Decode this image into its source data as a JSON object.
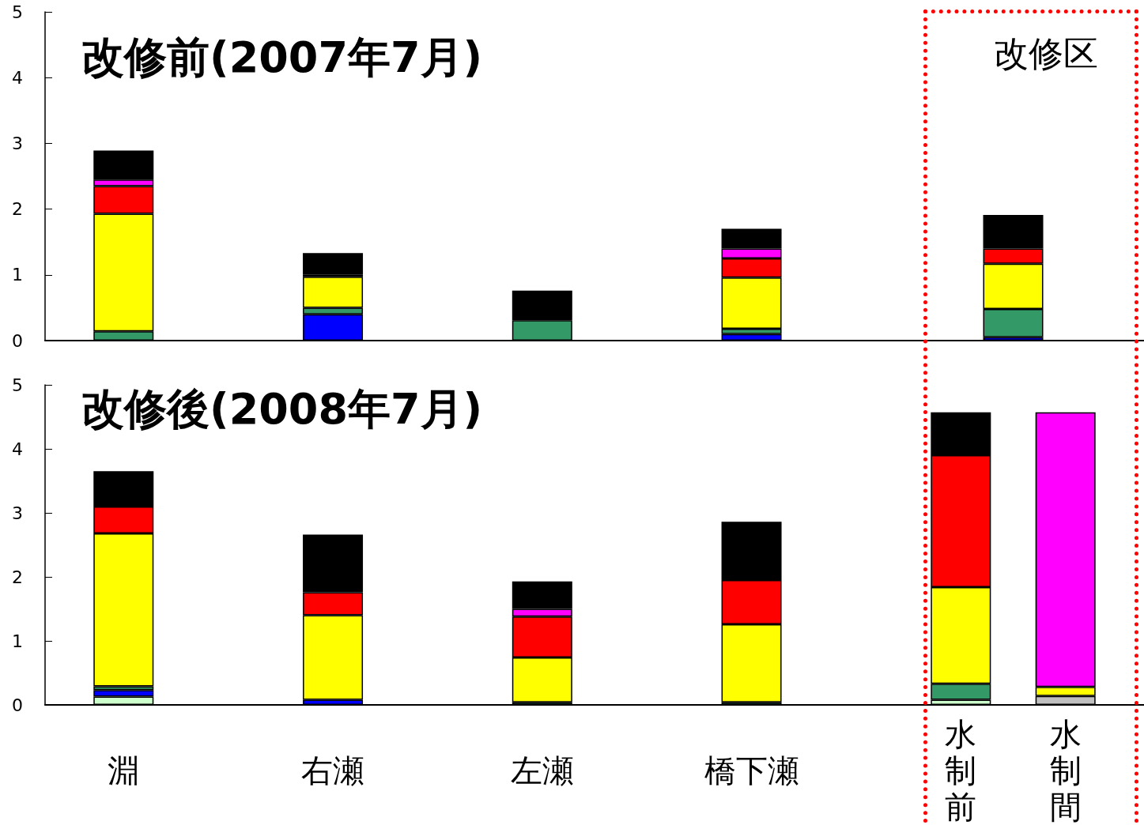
{
  "chart_data": [
    {
      "type": "bar",
      "title": "改修前(2007年7月)",
      "stacked": true,
      "tick_labels": "y",
      "ylim": [
        0,
        5
      ],
      "yticks": [
        0,
        1,
        2,
        3,
        4,
        5
      ],
      "grid": false,
      "annotations": [
        "改修区"
      ],
      "categories": [
        null,
        null,
        null,
        null,
        null,
        null,
        null,
        null,
        null,
        null,
        null,
        null,
        null,
        null,
        null,
        null,
        null,
        null,
        null,
        null,
        null
      ],
      "series": [
        {
          "color": "#0000ff",
          "values": [
            null,
            null,
            null,
            null,
            null,
            0.4,
            null,
            null,
            null,
            null,
            null,
            null,
            null,
            0.1,
            null,
            null,
            null,
            null,
            0.05,
            null,
            null
          ]
        },
        {
          "color": "#339966",
          "values": [
            null,
            0.14,
            null,
            null,
            null,
            0.1,
            null,
            null,
            null,
            0.31,
            null,
            null,
            null,
            0.08,
            null,
            null,
            null,
            null,
            0.43,
            null,
            null
          ]
        },
        {
          "color": "#ffff00",
          "values": [
            null,
            1.79,
            null,
            null,
            null,
            0.47,
            null,
            null,
            null,
            null,
            null,
            null,
            null,
            0.78,
            null,
            null,
            null,
            null,
            0.69,
            null,
            null
          ]
        },
        {
          "color": "#ff0000",
          "values": [
            null,
            0.42,
            null,
            null,
            null,
            null,
            null,
            null,
            null,
            null,
            null,
            null,
            null,
            0.29,
            null,
            null,
            null,
            null,
            0.23,
            null,
            null
          ]
        },
        {
          "color": "#ff00ff",
          "values": [
            null,
            0.1,
            null,
            null,
            null,
            0.03,
            null,
            null,
            null,
            null,
            null,
            null,
            null,
            0.15,
            null,
            null,
            null,
            null,
            null,
            null,
            null
          ]
        },
        {
          "color": "#000000",
          "values": [
            null,
            0.44,
            null,
            null,
            null,
            0.33,
            null,
            null,
            null,
            0.45,
            null,
            null,
            null,
            0.3,
            null,
            null,
            null,
            null,
            0.51,
            null,
            null
          ]
        }
      ]
    },
    {
      "type": "bar",
      "title": "改修後(2008年7月)",
      "stacked": true,
      "ylim": [
        0,
        5
      ],
      "yticks": [
        0,
        1,
        2,
        3,
        4,
        5
      ],
      "grid": false,
      "categories": [
        null,
        "淵",
        null,
        null,
        null,
        "右瀬",
        null,
        null,
        null,
        "左瀬",
        null,
        null,
        null,
        "橋下瀬",
        null,
        null,
        null,
        "水制前",
        null,
        "水制間",
        null
      ],
      "series": [
        {
          "color": "#ccffcc",
          "values": [
            null,
            0.13,
            null,
            null,
            null,
            null,
            null,
            null,
            null,
            null,
            null,
            null,
            null,
            null,
            null,
            null,
            null,
            0.08,
            null,
            null,
            null
          ]
        },
        {
          "color": "#c0c0c0",
          "values": [
            null,
            null,
            null,
            null,
            null,
            null,
            null,
            null,
            null,
            null,
            null,
            null,
            null,
            null,
            null,
            null,
            null,
            null,
            null,
            0.14,
            null
          ]
        },
        {
          "color": "#0000ff",
          "values": [
            null,
            0.1,
            null,
            null,
            null,
            0.08,
            null,
            null,
            null,
            null,
            null,
            null,
            null,
            null,
            null,
            null,
            null,
            null,
            null,
            null,
            null
          ]
        },
        {
          "color": "#339966",
          "values": [
            null,
            0.06,
            null,
            null,
            null,
            null,
            null,
            null,
            null,
            0.04,
            null,
            null,
            null,
            0.04,
            null,
            null,
            null,
            0.25,
            null,
            null,
            null
          ]
        },
        {
          "color": "#ffff00",
          "values": [
            null,
            2.39,
            null,
            null,
            null,
            1.32,
            null,
            null,
            null,
            0.7,
            null,
            null,
            null,
            1.22,
            null,
            null,
            null,
            1.51,
            null,
            0.14,
            null
          ]
        },
        {
          "color": "#ff0000",
          "values": [
            null,
            0.42,
            null,
            null,
            null,
            0.36,
            null,
            null,
            null,
            0.64,
            null,
            null,
            null,
            0.69,
            null,
            null,
            null,
            2.06,
            null,
            null,
            null
          ]
        },
        {
          "color": "#ff00ff",
          "values": [
            null,
            null,
            null,
            null,
            null,
            0.03,
            null,
            null,
            null,
            0.12,
            null,
            null,
            null,
            null,
            null,
            null,
            null,
            null,
            null,
            4.29,
            null
          ]
        },
        {
          "color": "#000000",
          "values": [
            null,
            0.55,
            null,
            null,
            null,
            0.87,
            null,
            null,
            null,
            0.43,
            null,
            null,
            null,
            0.91,
            null,
            null,
            null,
            0.67,
            null,
            null,
            null
          ]
        }
      ]
    }
  ]
}
